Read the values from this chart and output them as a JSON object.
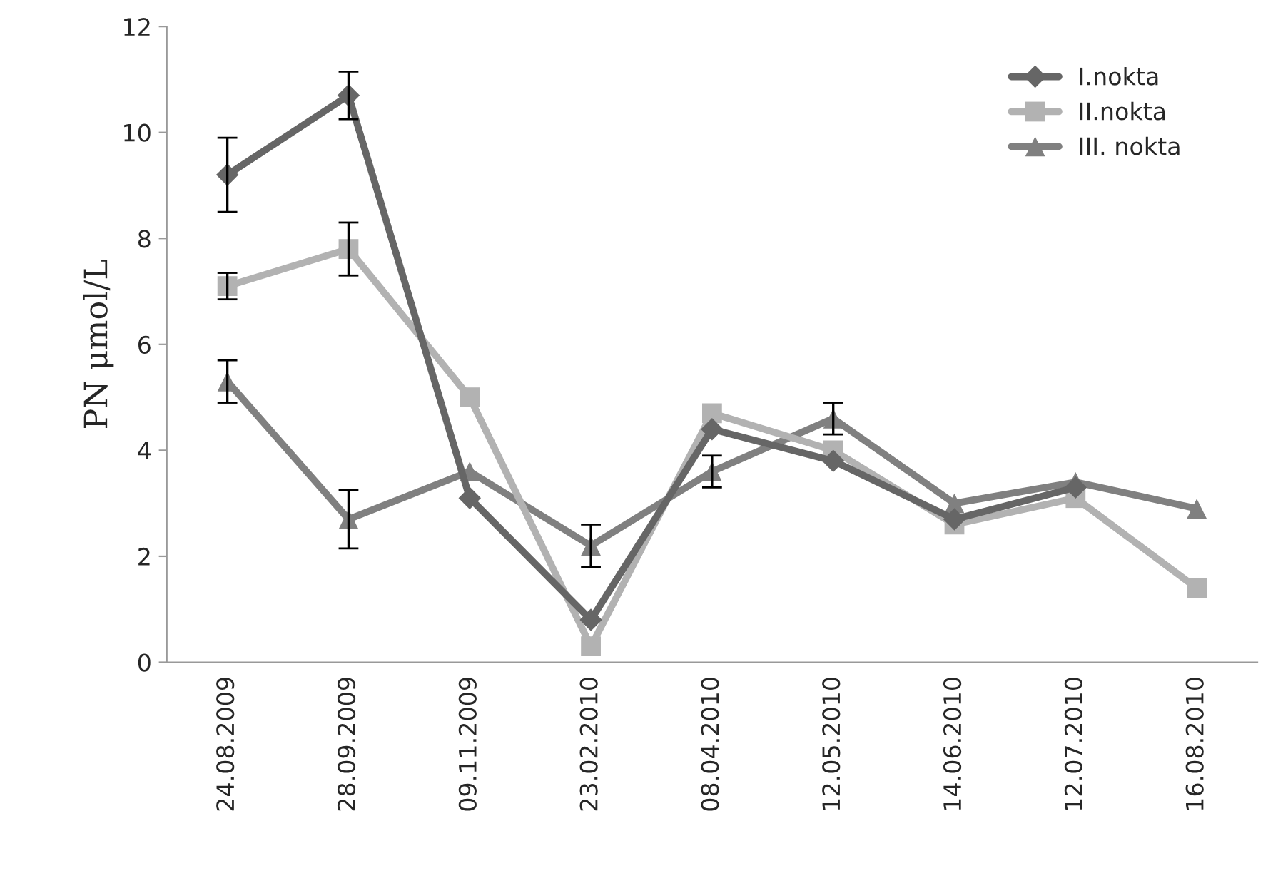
{
  "chart_data": {
    "type": "line",
    "ylabel": "PN μmol/L",
    "categories": [
      "24.08.2009",
      "28.09.2009",
      "09.11.2009",
      "23.02.2010",
      "08.04.2010",
      "12.05.2010",
      "14.06.2010",
      "12.07.2010",
      "16.08.2010"
    ],
    "series": [
      {
        "name": "I.nokta",
        "color": "#666666",
        "marker": "diamond",
        "values": [
          9.2,
          10.7,
          3.1,
          0.8,
          4.4,
          3.8,
          2.7,
          3.3,
          null
        ],
        "errors": [
          0.7,
          0.45,
          null,
          null,
          null,
          null,
          null,
          null,
          null
        ]
      },
      {
        "name": "II.nokta",
        "color": "#b2b2b2",
        "marker": "square",
        "values": [
          7.1,
          7.8,
          5.0,
          0.3,
          4.7,
          4.0,
          2.6,
          3.1,
          1.4
        ],
        "errors": [
          0.25,
          0.5,
          null,
          null,
          null,
          null,
          null,
          null,
          null
        ]
      },
      {
        "name": "III. nokta",
        "color": "#808080",
        "marker": "triangle",
        "values": [
          5.3,
          2.7,
          3.6,
          2.2,
          3.6,
          4.6,
          3.0,
          3.4,
          2.9
        ],
        "errors": [
          0.4,
          0.55,
          null,
          0.4,
          0.3,
          0.3,
          null,
          null,
          null
        ]
      }
    ],
    "ylim": [
      0,
      12
    ],
    "yticks": [
      0,
      2,
      4,
      6,
      8,
      10,
      12
    ],
    "grid": false,
    "legend": "top right",
    "line_style": "solid"
  }
}
